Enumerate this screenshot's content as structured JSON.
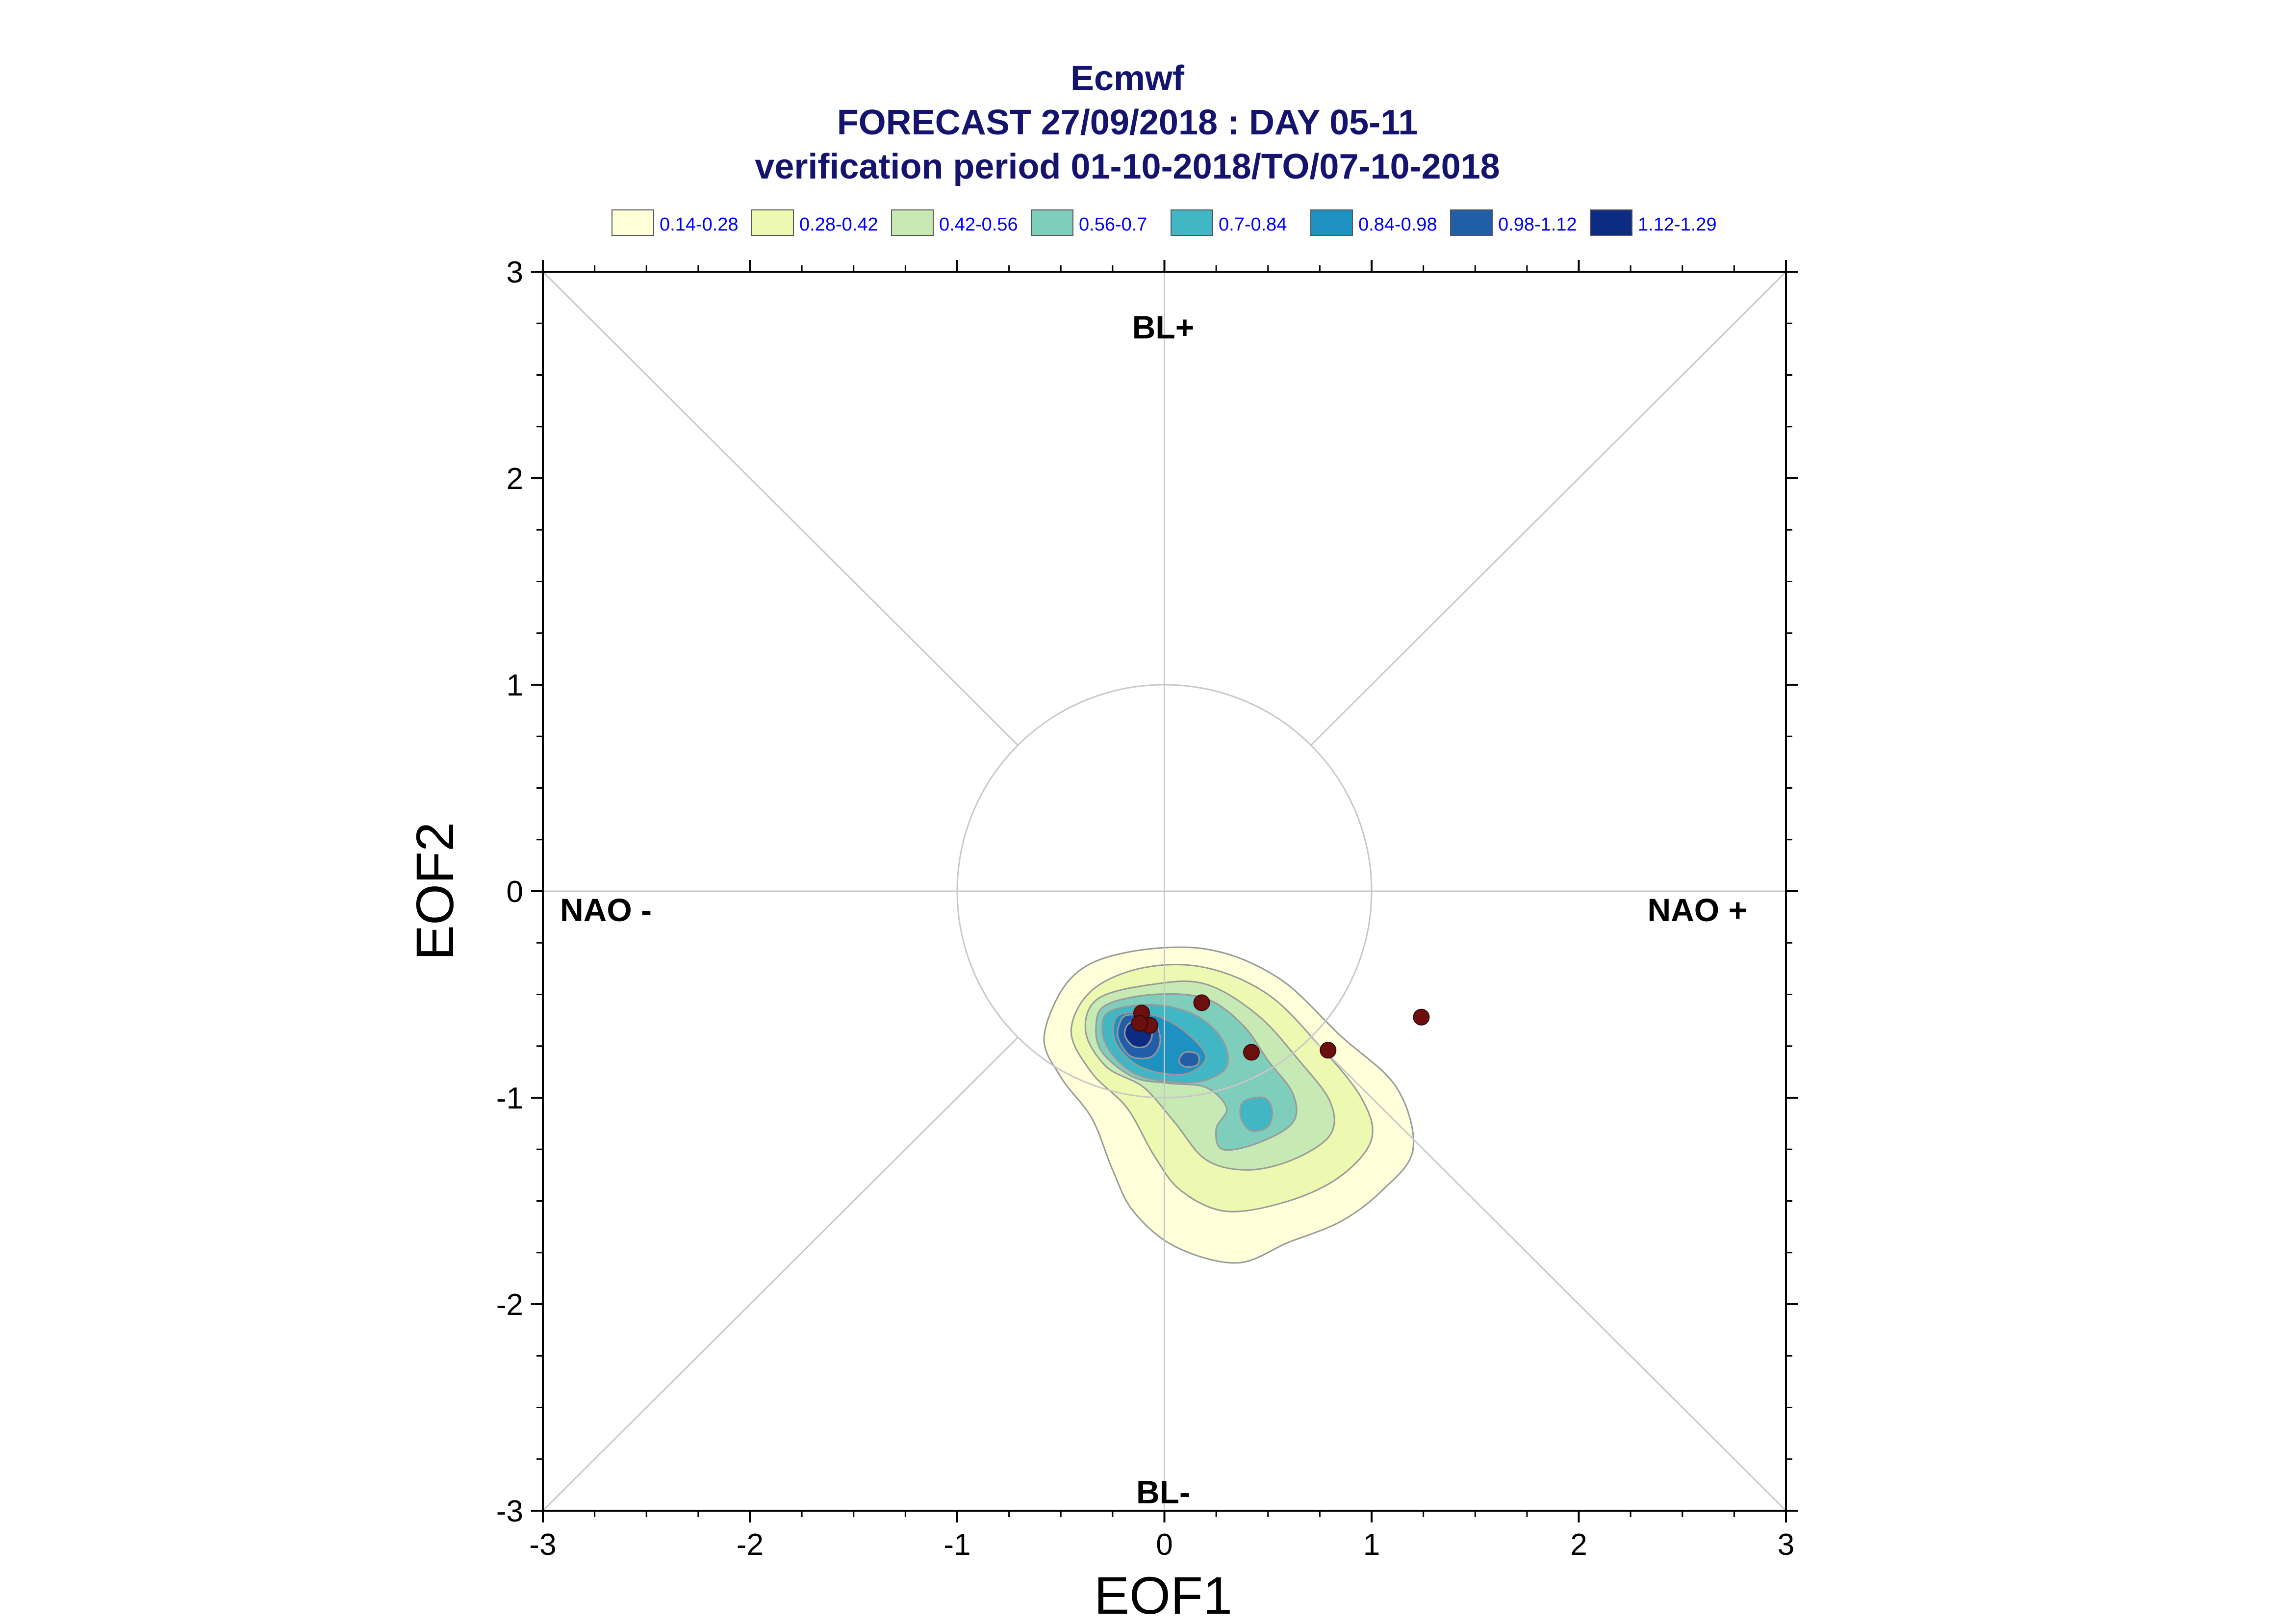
{
  "chart_data": {
    "type": "scatter",
    "title": "Ecmwf",
    "subtitle_1": "FORECAST 27/09/2018 : DAY 05-11",
    "subtitle_2": "verification period 01-10-2018/TO/07-10-2018",
    "xlabel": "EOF1",
    "ylabel": "EOF2",
    "xlim": [
      -3,
      3
    ],
    "ylim": [
      -3,
      3
    ],
    "x_ticks": [
      -3,
      -2,
      -1,
      0,
      1,
      2,
      3
    ],
    "y_ticks": [
      -3,
      -2,
      -1,
      0,
      1,
      2,
      3
    ],
    "x_tick_labels": [
      "-3",
      "-2",
      "-1",
      "0",
      "1",
      "2",
      "3"
    ],
    "y_tick_labels": [
      "-3",
      "-2",
      "-1",
      "0",
      "1",
      "2",
      "3"
    ],
    "grid": false,
    "reference_circle_radius": 1,
    "regime_labels": {
      "top": "BL+",
      "bottom": "BL-",
      "left": "NAO -",
      "right": "NAO +"
    },
    "legend": {
      "placement": "top",
      "entries": [
        {
          "label": "0.14-0.28",
          "color": "#ffffd9"
        },
        {
          "label": "0.28-0.42",
          "color": "#edf8b1"
        },
        {
          "label": "0.42-0.56",
          "color": "#c7e9b4"
        },
        {
          "label": "0.56-0.7",
          "color": "#7fcdbb"
        },
        {
          "label": "0.7-0.84",
          "color": "#41b6c4"
        },
        {
          "label": "0.84-0.98",
          "color": "#1d91c0"
        },
        {
          "label": "0.98-1.12",
          "color": "#225ea8"
        },
        {
          "label": "1.12-1.29",
          "color": "#0c2c84"
        }
      ]
    },
    "density_contours": [
      {
        "level": "0.14-0.28",
        "color": "#ffffd9",
        "points": [
          [
            -0.45,
            -0.42
          ],
          [
            -0.2,
            -0.3
          ],
          [
            0.2,
            -0.28
          ],
          [
            0.55,
            -0.42
          ],
          [
            0.85,
            -0.7
          ],
          [
            1.12,
            -0.95
          ],
          [
            1.2,
            -1.25
          ],
          [
            1.05,
            -1.45
          ],
          [
            0.85,
            -1.6
          ],
          [
            0.6,
            -1.7
          ],
          [
            0.35,
            -1.8
          ],
          [
            0.05,
            -1.72
          ],
          [
            -0.15,
            -1.55
          ],
          [
            -0.25,
            -1.35
          ],
          [
            -0.35,
            -1.1
          ],
          [
            -0.5,
            -0.9
          ],
          [
            -0.58,
            -0.7
          ]
        ]
      },
      {
        "level": "0.28-0.42",
        "color": "#edf8b1",
        "points": [
          [
            -0.35,
            -0.48
          ],
          [
            -0.1,
            -0.37
          ],
          [
            0.2,
            -0.37
          ],
          [
            0.5,
            -0.5
          ],
          [
            0.75,
            -0.75
          ],
          [
            0.95,
            -1.0
          ],
          [
            1.0,
            -1.2
          ],
          [
            0.85,
            -1.38
          ],
          [
            0.6,
            -1.5
          ],
          [
            0.3,
            -1.55
          ],
          [
            0.08,
            -1.45
          ],
          [
            -0.05,
            -1.28
          ],
          [
            -0.18,
            -1.05
          ],
          [
            -0.35,
            -0.88
          ],
          [
            -0.45,
            -0.68
          ]
        ]
      },
      {
        "level": "0.42-0.56",
        "color": "#c7e9b4",
        "points": [
          [
            -0.32,
            -0.52
          ],
          [
            -0.05,
            -0.45
          ],
          [
            0.2,
            -0.45
          ],
          [
            0.45,
            -0.6
          ],
          [
            0.65,
            -0.82
          ],
          [
            0.8,
            -1.02
          ],
          [
            0.8,
            -1.18
          ],
          [
            0.62,
            -1.3
          ],
          [
            0.4,
            -1.35
          ],
          [
            0.2,
            -1.3
          ],
          [
            0.05,
            -1.12
          ],
          [
            -0.1,
            -0.95
          ],
          [
            -0.28,
            -0.85
          ],
          [
            -0.38,
            -0.68
          ]
        ]
      },
      {
        "level": "0.56-0.7",
        "color": "#7fcdbb",
        "points": [
          [
            -0.28,
            -0.55
          ],
          [
            -0.05,
            -0.5
          ],
          [
            0.2,
            -0.52
          ],
          [
            0.38,
            -0.65
          ],
          [
            0.5,
            -0.82
          ],
          [
            0.62,
            -0.98
          ],
          [
            0.62,
            -1.12
          ],
          [
            0.45,
            -1.22
          ],
          [
            0.28,
            -1.25
          ],
          [
            0.25,
            -1.15
          ],
          [
            0.3,
            -1.05
          ],
          [
            0.2,
            -0.95
          ],
          [
            0.02,
            -0.93
          ],
          [
            -0.15,
            -0.9
          ],
          [
            -0.3,
            -0.78
          ],
          [
            -0.33,
            -0.65
          ]
        ]
      },
      {
        "level": "0.7-0.84",
        "color": "#41b6c4",
        "points": [
          [
            -0.26,
            -0.58
          ],
          [
            -0.05,
            -0.55
          ],
          [
            0.15,
            -0.6
          ],
          [
            0.28,
            -0.72
          ],
          [
            0.3,
            -0.85
          ],
          [
            0.18,
            -0.92
          ],
          [
            0.0,
            -0.92
          ],
          [
            -0.15,
            -0.88
          ],
          [
            -0.26,
            -0.78
          ],
          [
            -0.3,
            -0.67
          ]
        ]
      },
      {
        "level": "0.7-0.84",
        "color": "#41b6c4",
        "points": [
          [
            0.38,
            -1.02
          ],
          [
            0.48,
            -1.0
          ],
          [
            0.52,
            -1.06
          ],
          [
            0.5,
            -1.14
          ],
          [
            0.42,
            -1.16
          ],
          [
            0.37,
            -1.1
          ]
        ]
      },
      {
        "level": "0.84-0.98",
        "color": "#1d91c0",
        "points": [
          [
            -0.22,
            -0.6
          ],
          [
            -0.05,
            -0.6
          ],
          [
            0.1,
            -0.68
          ],
          [
            0.2,
            -0.8
          ],
          [
            0.12,
            -0.88
          ],
          [
            -0.02,
            -0.88
          ],
          [
            -0.15,
            -0.83
          ],
          [
            -0.24,
            -0.72
          ]
        ]
      },
      {
        "level": "0.98-1.12",
        "color": "#225ea8",
        "points": [
          [
            -0.18,
            -0.6
          ],
          [
            -0.06,
            -0.62
          ],
          [
            -0.02,
            -0.72
          ],
          [
            -0.06,
            -0.8
          ],
          [
            -0.16,
            -0.8
          ],
          [
            -0.22,
            -0.72
          ],
          [
            -0.22,
            -0.65
          ]
        ]
      },
      {
        "level": "0.98-1.12",
        "color": "#225ea8",
        "points": [
          [
            0.1,
            -0.78
          ],
          [
            0.16,
            -0.79
          ],
          [
            0.16,
            -0.84
          ],
          [
            0.1,
            -0.85
          ],
          [
            0.07,
            -0.82
          ]
        ]
      },
      {
        "level": "1.12-1.29",
        "color": "#0c2c84",
        "points": [
          [
            -0.14,
            -0.63
          ],
          [
            -0.08,
            -0.64
          ],
          [
            -0.06,
            -0.7
          ],
          [
            -0.09,
            -0.75
          ],
          [
            -0.15,
            -0.75
          ],
          [
            -0.19,
            -0.7
          ],
          [
            -0.18,
            -0.65
          ]
        ]
      }
    ],
    "series": [
      {
        "marker_color": "#6b0f0f",
        "x": [
          -0.11,
          -0.07,
          0.18,
          0.42,
          0.79,
          1.24,
          -0.12
        ],
        "y": [
          -0.59,
          -0.65,
          -0.54,
          -0.78,
          -0.77,
          -0.61,
          -0.64
        ]
      }
    ]
  }
}
